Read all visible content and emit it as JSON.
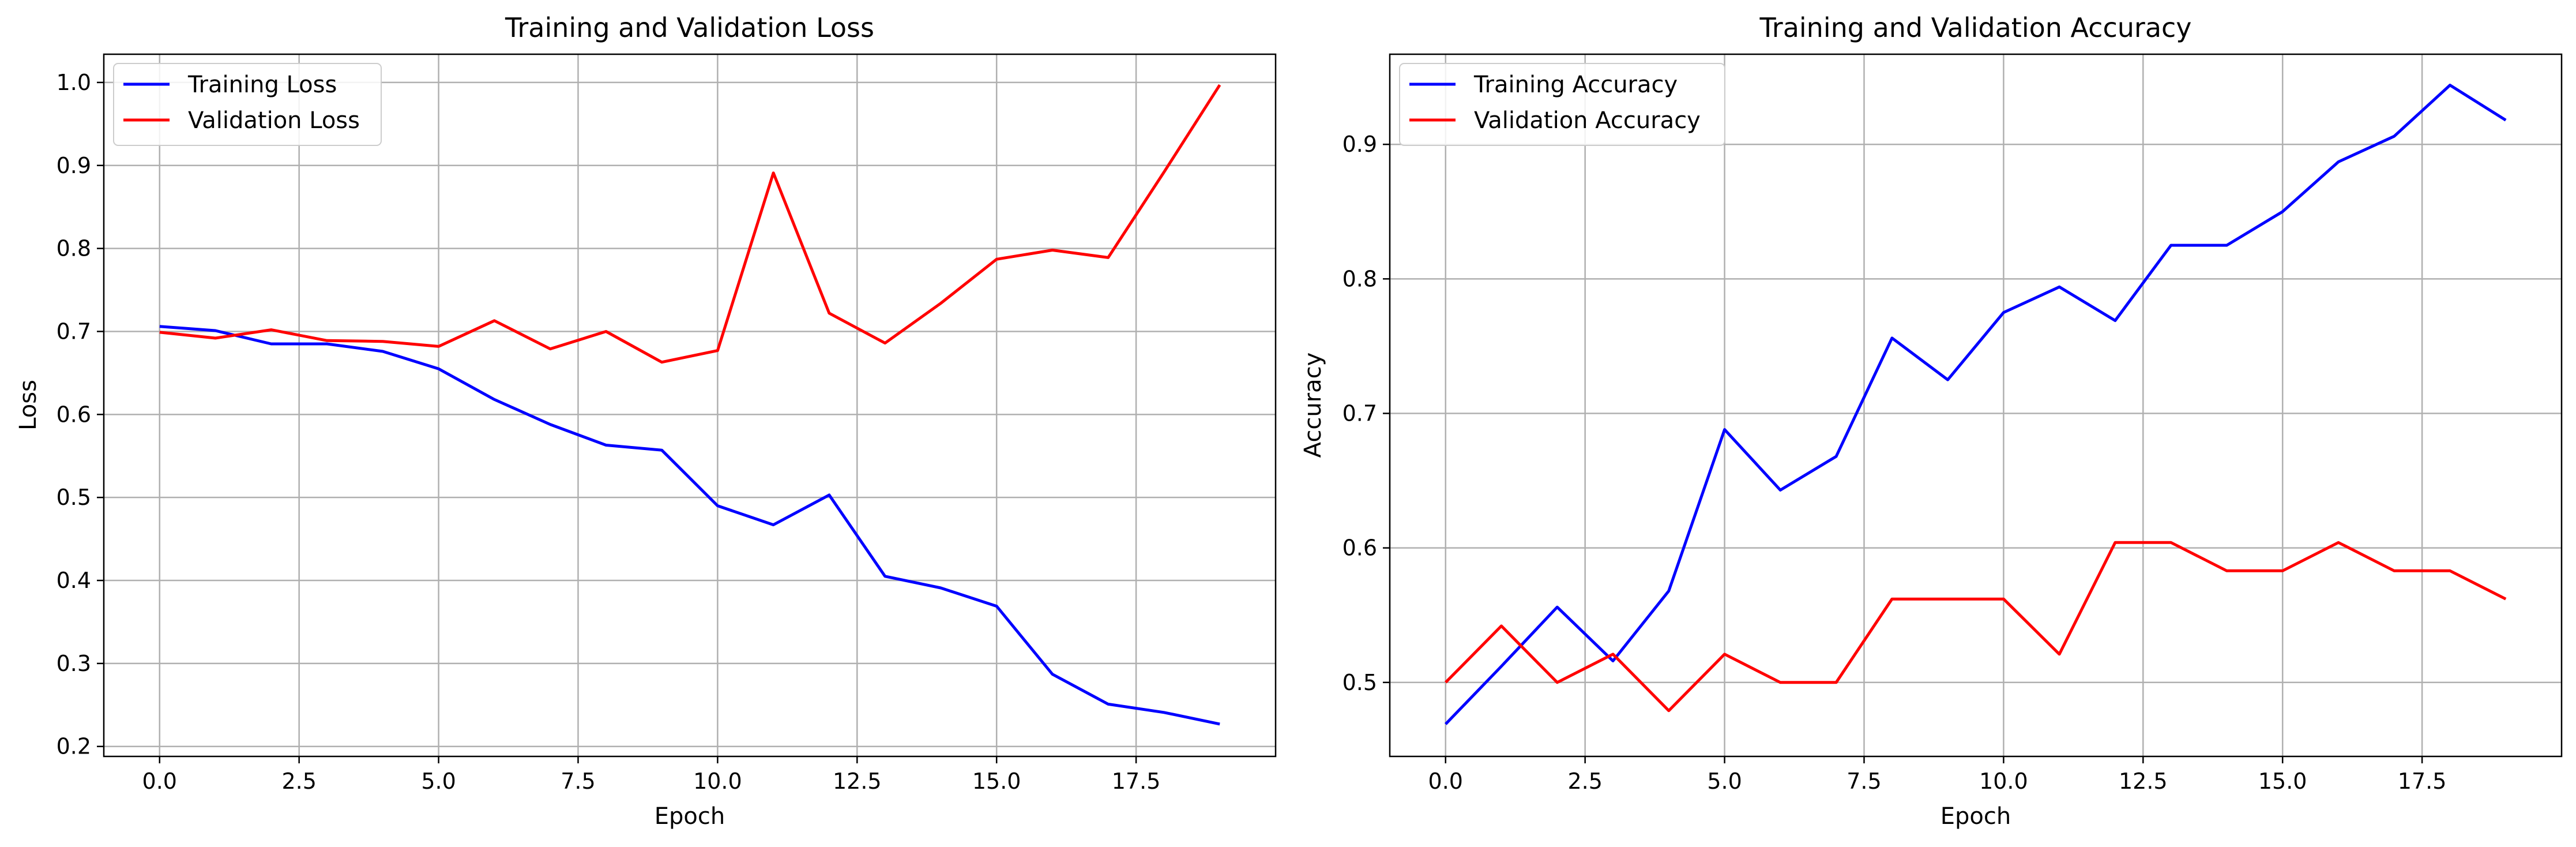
{
  "chart_data": [
    {
      "type": "line",
      "title": "Training and Validation Loss",
      "xlabel": "Epoch",
      "ylabel": "Loss",
      "x": [
        0,
        1,
        2,
        3,
        4,
        5,
        6,
        7,
        8,
        9,
        10,
        11,
        12,
        13,
        14,
        15,
        16,
        17,
        18,
        19
      ],
      "series": [
        {
          "name": "Training Loss",
          "color": "#0000ff",
          "values": [
            0.706,
            0.701,
            0.685,
            0.685,
            0.676,
            0.655,
            0.618,
            0.588,
            0.563,
            0.557,
            0.49,
            0.467,
            0.503,
            0.405,
            0.391,
            0.369,
            0.287,
            0.251,
            0.241,
            0.227
          ]
        },
        {
          "name": "Validation Loss",
          "color": "#ff0000",
          "values": [
            0.699,
            0.692,
            0.702,
            0.689,
            0.688,
            0.682,
            0.713,
            0.679,
            0.7,
            0.663,
            0.677,
            0.891,
            0.722,
            0.686,
            0.734,
            0.787,
            0.798,
            0.789,
            0.892,
            0.997
          ]
        }
      ],
      "xlim": [
        -1.0,
        20.0
      ],
      "ylim": [
        0.188,
        1.034
      ],
      "xticks": [
        0,
        2.5,
        5,
        7.5,
        10,
        12.5,
        15,
        17.5
      ],
      "xtick_labels": [
        "0.0",
        "2.5",
        "5.0",
        "7.5",
        "10.0",
        "12.5",
        "15.0",
        "17.5"
      ],
      "yticks": [
        0.2,
        0.3,
        0.4,
        0.5,
        0.6,
        0.7,
        0.8,
        0.9,
        1.0
      ],
      "ytick_labels": [
        "0.2",
        "0.3",
        "0.4",
        "0.5",
        "0.6",
        "0.7",
        "0.8",
        "0.9",
        "1.0"
      ],
      "grid": true,
      "legend": "upper left"
    },
    {
      "type": "line",
      "title": "Training and Validation Accuracy",
      "xlabel": "Epoch",
      "ylabel": "Accuracy",
      "x": [
        0,
        1,
        2,
        3,
        4,
        5,
        6,
        7,
        8,
        9,
        10,
        11,
        12,
        13,
        14,
        15,
        16,
        17,
        18,
        19
      ],
      "series": [
        {
          "name": "Training Accuracy",
          "color": "#0000ff",
          "values": [
            0.469,
            0.512,
            0.556,
            0.516,
            0.568,
            0.688,
            0.643,
            0.668,
            0.756,
            0.725,
            0.775,
            0.794,
            0.769,
            0.825,
            0.825,
            0.85,
            0.887,
            0.906,
            0.944,
            0.918
          ]
        },
        {
          "name": "Validation Accuracy",
          "color": "#ff0000",
          "values": [
            0.5,
            0.542,
            0.5,
            0.521,
            0.479,
            0.521,
            0.5,
            0.5,
            0.562,
            0.562,
            0.562,
            0.521,
            0.604,
            0.604,
            0.583,
            0.583,
            0.604,
            0.583,
            0.583,
            0.562
          ]
        }
      ],
      "xlim": [
        -1.0,
        20.0
      ],
      "ylim": [
        0.445,
        0.967
      ],
      "xticks": [
        0,
        2.5,
        5,
        7.5,
        10,
        12.5,
        15,
        17.5
      ],
      "xtick_labels": [
        "0.0",
        "2.5",
        "5.0",
        "7.5",
        "10.0",
        "12.5",
        "15.0",
        "17.5"
      ],
      "yticks": [
        0.5,
        0.6,
        0.7,
        0.8,
        0.9
      ],
      "ytick_labels": [
        "0.5",
        "0.6",
        "0.7",
        "0.8",
        "0.9"
      ],
      "grid": true,
      "legend": "upper left"
    }
  ]
}
